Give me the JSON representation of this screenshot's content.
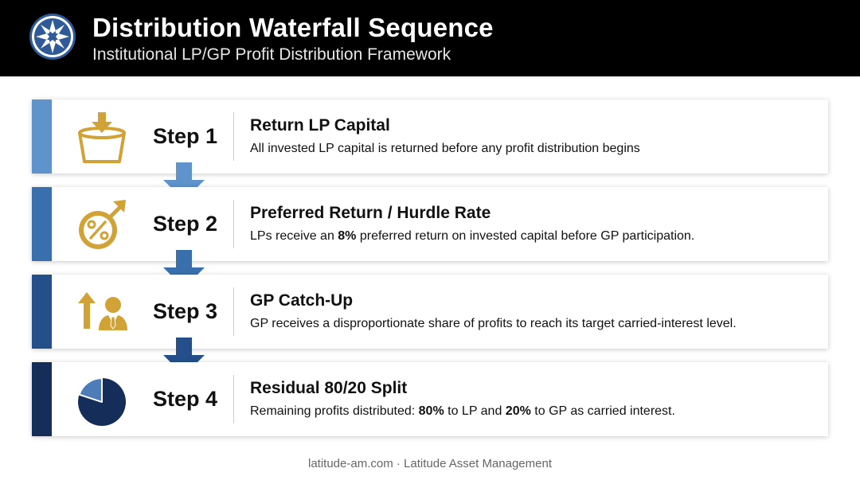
{
  "header": {
    "title": "Distribution Waterfall Sequence",
    "subtitle": "Institutional LP/GP Profit Distribution Framework"
  },
  "colors": {
    "step1": "#5f93cb",
    "step2": "#3a6fae",
    "step3": "#244f8a",
    "step4": "#152e59",
    "gold": "#d1a236"
  },
  "steps": [
    {
      "label": "Step 1",
      "heading": "Return LP Capital",
      "desc_parts": [
        "All invested LP capital is returned before any profit distribution begins"
      ],
      "icon": "capital-return-icon"
    },
    {
      "label": "Step 2",
      "heading": "Preferred Return / Hurdle Rate",
      "desc_parts": [
        "LPs receive an ",
        "8%",
        " preferred return on invested capital before GP participation."
      ],
      "icon": "percent-growth-icon"
    },
    {
      "label": "Step 3",
      "heading": "GP Catch-Up",
      "desc_parts": [
        "GP receives a disproportionate share of profits to reach its target carried-interest level."
      ],
      "icon": "manager-growth-icon"
    },
    {
      "label": "Step 4",
      "heading": "Residual 80/20 Split",
      "desc_parts": [
        "Remaining profits distributed: ",
        "80%",
        " to LP and ",
        "20%",
        " to GP as carried interest."
      ],
      "icon": "pie-chart-icon"
    }
  ],
  "footer": {
    "text": "latitude-am.com · Latitude Asset Management"
  }
}
